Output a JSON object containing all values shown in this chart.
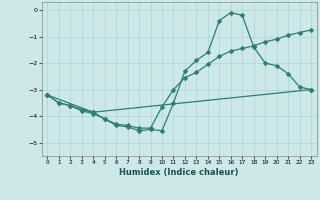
{
  "xlabel": "Humidex (Indice chaleur)",
  "background_color": "#cde8e8",
  "grid_color": "#add4d4",
  "line_color": "#2e7d72",
  "xlim": [
    -0.5,
    23.5
  ],
  "ylim": [
    -5.5,
    0.3
  ],
  "xticks": [
    0,
    1,
    2,
    3,
    4,
    5,
    6,
    7,
    8,
    9,
    10,
    11,
    12,
    13,
    14,
    15,
    16,
    17,
    18,
    19,
    20,
    21,
    22,
    23
  ],
  "yticks": [
    0,
    -1,
    -2,
    -3,
    -4,
    -5
  ],
  "line1_x": [
    0,
    1,
    2,
    3,
    4,
    5,
    6,
    7,
    8,
    9,
    10,
    11,
    12,
    13,
    14,
    15,
    16,
    17,
    18,
    19,
    20,
    21,
    22,
    23
  ],
  "line1_y": [
    -3.2,
    -3.5,
    -3.6,
    -3.75,
    -3.85,
    -4.1,
    -4.35,
    -4.4,
    -4.55,
    -4.5,
    -4.55,
    -3.5,
    -2.3,
    -1.9,
    -1.6,
    -0.4,
    -0.1,
    -0.2,
    -1.4,
    -2.0,
    -2.1,
    -2.4,
    -2.9,
    -3.0
  ],
  "line2_x": [
    0,
    1,
    2,
    3,
    4,
    5,
    6,
    7,
    8,
    9,
    10,
    11,
    12,
    13,
    14,
    15,
    16,
    17,
    18,
    19,
    20,
    21,
    22,
    23
  ],
  "line2_y": [
    -3.2,
    -3.5,
    -3.6,
    -3.8,
    -3.9,
    -4.1,
    -4.3,
    -4.35,
    -4.45,
    -4.45,
    -3.65,
    -3.0,
    -2.55,
    -2.35,
    -2.05,
    -1.75,
    -1.55,
    -1.45,
    -1.35,
    -1.2,
    -1.1,
    -0.95,
    -0.85,
    -0.75
  ],
  "line3_x": [
    0,
    4,
    23
  ],
  "line3_y": [
    -3.2,
    -3.85,
    -3.0
  ]
}
